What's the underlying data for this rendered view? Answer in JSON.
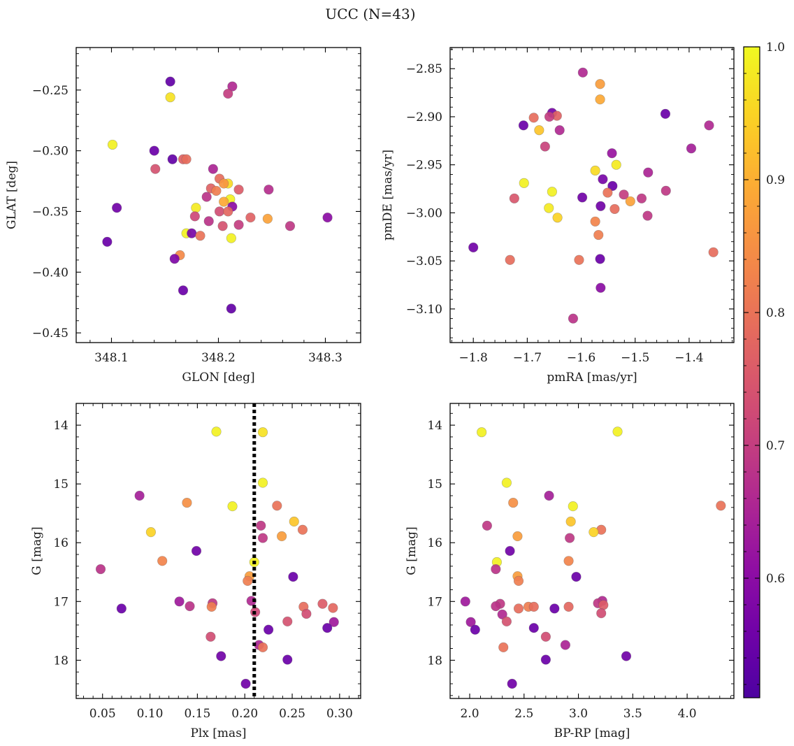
{
  "suptitle": "UCC (N=43)",
  "colorbar": {
    "cmap": "plasma",
    "min": 0.51,
    "max": 1.0,
    "ticks": [
      0.6,
      0.7,
      0.8,
      0.9,
      1.0
    ],
    "tick_labels": [
      "0.6",
      "0.7",
      "0.8",
      "0.9",
      "1.0"
    ]
  },
  "chart_data": [
    {
      "type": "scatter",
      "title": "",
      "xlabel": "GLON [deg]",
      "ylabel": "GLAT [deg]",
      "xlim": [
        348.067,
        348.333
      ],
      "ylim": [
        -0.458,
        -0.215
      ],
      "y_inverted": false,
      "xticks": [
        348.1,
        348.2,
        348.3
      ],
      "xtick_labels": [
        "348.1",
        "348.2",
        "348.3"
      ],
      "yticks": [
        -0.25,
        -0.3,
        -0.35,
        -0.4,
        -0.45
      ],
      "ytick_labels": [
        "−0.25",
        "−0.30",
        "−0.35",
        "−0.40",
        "−0.45"
      ],
      "vline": null,
      "points": [
        {
          "x": 348.155,
          "y": -0.243,
          "c": 0.54
        },
        {
          "x": 348.155,
          "y": -0.256,
          "c": 0.97
        },
        {
          "x": 348.213,
          "y": -0.247,
          "c": 0.66
        },
        {
          "x": 348.209,
          "y": -0.253,
          "c": 0.7
        },
        {
          "x": 348.101,
          "y": -0.295,
          "c": 0.99
        },
        {
          "x": 348.14,
          "y": -0.3,
          "c": 0.55
        },
        {
          "x": 348.157,
          "y": -0.307,
          "c": 0.54
        },
        {
          "x": 348.141,
          "y": -0.315,
          "c": 0.74
        },
        {
          "x": 348.167,
          "y": -0.307,
          "c": 0.77
        },
        {
          "x": 348.17,
          "y": -0.307,
          "c": 0.79
        },
        {
          "x": 348.195,
          "y": -0.315,
          "c": 0.65
        },
        {
          "x": 348.201,
          "y": -0.323,
          "c": 0.79
        },
        {
          "x": 348.209,
          "y": -0.327,
          "c": 0.96
        },
        {
          "x": 348.205,
          "y": -0.327,
          "c": 0.86
        },
        {
          "x": 348.193,
          "y": -0.331,
          "c": 0.77
        },
        {
          "x": 348.198,
          "y": -0.333,
          "c": 0.82
        },
        {
          "x": 348.219,
          "y": -0.332,
          "c": 0.76
        },
        {
          "x": 348.247,
          "y": -0.332,
          "c": 0.67
        },
        {
          "x": 348.189,
          "y": -0.338,
          "c": 0.68
        },
        {
          "x": 348.211,
          "y": -0.34,
          "c": 0.99
        },
        {
          "x": 348.205,
          "y": -0.342,
          "c": 0.89
        },
        {
          "x": 348.213,
          "y": -0.346,
          "c": 0.6
        },
        {
          "x": 348.105,
          "y": -0.347,
          "c": 0.56
        },
        {
          "x": 348.179,
          "y": -0.347,
          "c": 0.98
        },
        {
          "x": 348.201,
          "y": -0.35,
          "c": 0.73
        },
        {
          "x": 348.209,
          "y": -0.35,
          "c": 0.78
        },
        {
          "x": 348.178,
          "y": -0.354,
          "c": 0.72
        },
        {
          "x": 348.23,
          "y": -0.355,
          "c": 0.77
        },
        {
          "x": 348.246,
          "y": -0.356,
          "c": 0.88
        },
        {
          "x": 348.302,
          "y": -0.355,
          "c": 0.6
        },
        {
          "x": 348.191,
          "y": -0.358,
          "c": 0.68
        },
        {
          "x": 348.204,
          "y": -0.362,
          "c": 0.74
        },
        {
          "x": 348.219,
          "y": -0.361,
          "c": 0.7
        },
        {
          "x": 348.267,
          "y": -0.362,
          "c": 0.69
        },
        {
          "x": 348.17,
          "y": -0.368,
          "c": 0.99
        },
        {
          "x": 348.175,
          "y": -0.368,
          "c": 0.57
        },
        {
          "x": 348.183,
          "y": -0.37,
          "c": 0.8
        },
        {
          "x": 348.212,
          "y": -0.372,
          "c": 0.99
        },
        {
          "x": 348.096,
          "y": -0.375,
          "c": 0.55
        },
        {
          "x": 348.164,
          "y": -0.386,
          "c": 0.84
        },
        {
          "x": 348.159,
          "y": -0.389,
          "c": 0.58
        },
        {
          "x": 348.167,
          "y": -0.415,
          "c": 0.55
        },
        {
          "x": 348.212,
          "y": -0.43,
          "c": 0.54
        }
      ]
    },
    {
      "type": "scatter",
      "title": "",
      "xlabel": "pmRA [mas/yr]",
      "ylabel": "pmDE [mas/yr]",
      "xlim": [
        -1.843,
        -1.317
      ],
      "ylim": [
        -3.135,
        -2.828
      ],
      "y_inverted": false,
      "xticks": [
        -1.8,
        -1.7,
        -1.6,
        -1.5,
        -1.4
      ],
      "xtick_labels": [
        "−1.8",
        "−1.7",
        "−1.6",
        "−1.5",
        "−1.4"
      ],
      "yticks": [
        -2.85,
        -2.9,
        -2.95,
        -3.0,
        -3.05,
        -3.1
      ],
      "ytick_labels": [
        "−2.85",
        "−2.90",
        "−2.95",
        "−3.00",
        "−3.05",
        "−3.10"
      ],
      "vline": null,
      "points": [
        {
          "x": -1.597,
          "y": -2.854,
          "c": 0.66
        },
        {
          "x": -1.565,
          "y": -2.866,
          "c": 0.87
        },
        {
          "x": -1.565,
          "y": -2.882,
          "c": 0.89
        },
        {
          "x": -1.654,
          "y": -2.896,
          "c": 0.57
        },
        {
          "x": -1.444,
          "y": -2.897,
          "c": 0.55
        },
        {
          "x": -1.645,
          "y": -2.899,
          "c": 0.77
        },
        {
          "x": -1.659,
          "y": -2.9,
          "c": 0.7
        },
        {
          "x": -1.688,
          "y": -2.901,
          "c": 0.79
        },
        {
          "x": -1.707,
          "y": -2.909,
          "c": 0.55
        },
        {
          "x": -1.363,
          "y": -2.909,
          "c": 0.66
        },
        {
          "x": -1.678,
          "y": -2.914,
          "c": 0.93
        },
        {
          "x": -1.64,
          "y": -2.914,
          "c": 0.66
        },
        {
          "x": -1.667,
          "y": -2.931,
          "c": 0.71
        },
        {
          "x": -1.396,
          "y": -2.933,
          "c": 0.64
        },
        {
          "x": -1.543,
          "y": -2.938,
          "c": 0.62
        },
        {
          "x": -1.535,
          "y": -2.95,
          "c": 0.98
        },
        {
          "x": -1.574,
          "y": -2.956,
          "c": 0.96
        },
        {
          "x": -1.476,
          "y": -2.958,
          "c": 0.65
        },
        {
          "x": -1.56,
          "y": -2.965,
          "c": 0.57
        },
        {
          "x": -1.706,
          "y": -2.969,
          "c": 0.99
        },
        {
          "x": -1.542,
          "y": -2.972,
          "c": 0.55
        },
        {
          "x": -1.443,
          "y": -2.977,
          "c": 0.69
        },
        {
          "x": -1.654,
          "y": -2.978,
          "c": 0.99
        },
        {
          "x": -1.551,
          "y": -2.979,
          "c": 0.8
        },
        {
          "x": -1.521,
          "y": -2.981,
          "c": 0.7
        },
        {
          "x": -1.598,
          "y": -2.984,
          "c": 0.56
        },
        {
          "x": -1.724,
          "y": -2.985,
          "c": 0.75
        },
        {
          "x": -1.488,
          "y": -2.985,
          "c": 0.69
        },
        {
          "x": -1.509,
          "y": -2.988,
          "c": 0.88
        },
        {
          "x": -1.564,
          "y": -2.993,
          "c": 0.56
        },
        {
          "x": -1.66,
          "y": -2.995,
          "c": 0.98
        },
        {
          "x": -1.538,
          "y": -2.996,
          "c": 0.79
        },
        {
          "x": -1.477,
          "y": -3.003,
          "c": 0.69
        },
        {
          "x": -1.644,
          "y": -3.005,
          "c": 0.95
        },
        {
          "x": -1.574,
          "y": -3.009,
          "c": 0.83
        },
        {
          "x": -1.568,
          "y": -3.023,
          "c": 0.82
        },
        {
          "x": -1.8,
          "y": -3.036,
          "c": 0.56
        },
        {
          "x": -1.355,
          "y": -3.041,
          "c": 0.79
        },
        {
          "x": -1.732,
          "y": -3.049,
          "c": 0.79
        },
        {
          "x": -1.604,
          "y": -3.049,
          "c": 0.8
        },
        {
          "x": -1.565,
          "y": -3.048,
          "c": 0.55
        },
        {
          "x": -1.564,
          "y": -3.078,
          "c": 0.6
        },
        {
          "x": -1.615,
          "y": -3.11,
          "c": 0.68
        }
      ]
    },
    {
      "type": "scatter",
      "title": "",
      "xlabel": "Plx [mas]",
      "ylabel": "G [mag]",
      "xlim": [
        0.0222,
        0.3222
      ],
      "ylim": [
        18.65,
        13.63
      ],
      "y_inverted": true,
      "xticks": [
        0.05,
        0.1,
        0.15,
        0.2,
        0.25,
        0.3
      ],
      "xtick_labels": [
        "0.05",
        "0.10",
        "0.15",
        "0.20",
        "0.25",
        "0.30"
      ],
      "yticks": [
        14,
        15,
        16,
        17,
        18
      ],
      "ytick_labels": [
        "14",
        "15",
        "16",
        "17",
        "18"
      ],
      "vline": {
        "x": 0.21,
        "style": "dotted"
      },
      "points": [
        {
          "x": 0.17,
          "y": 14.11,
          "c": 0.99
        },
        {
          "x": 0.219,
          "y": 14.12,
          "c": 0.97
        },
        {
          "x": 0.219,
          "y": 14.98,
          "c": 0.99
        },
        {
          "x": 0.089,
          "y": 15.2,
          "c": 0.64
        },
        {
          "x": 0.139,
          "y": 15.32,
          "c": 0.85
        },
        {
          "x": 0.234,
          "y": 15.37,
          "c": 0.8
        },
        {
          "x": 0.187,
          "y": 15.38,
          "c": 0.99
        },
        {
          "x": 0.252,
          "y": 15.64,
          "c": 0.93
        },
        {
          "x": 0.217,
          "y": 15.71,
          "c": 0.69
        },
        {
          "x": 0.261,
          "y": 15.78,
          "c": 0.8
        },
        {
          "x": 0.101,
          "y": 15.82,
          "c": 0.95
        },
        {
          "x": 0.239,
          "y": 15.89,
          "c": 0.87
        },
        {
          "x": 0.219,
          "y": 15.92,
          "c": 0.69
        },
        {
          "x": 0.149,
          "y": 16.14,
          "c": 0.56
        },
        {
          "x": 0.113,
          "y": 16.31,
          "c": 0.83
        },
        {
          "x": 0.21,
          "y": 16.33,
          "c": 0.99
        },
        {
          "x": 0.048,
          "y": 16.45,
          "c": 0.68
        },
        {
          "x": 0.205,
          "y": 16.57,
          "c": 0.87
        },
        {
          "x": 0.251,
          "y": 16.58,
          "c": 0.55
        },
        {
          "x": 0.203,
          "y": 16.65,
          "c": 0.82
        },
        {
          "x": 0.131,
          "y": 17.0,
          "c": 0.63
        },
        {
          "x": 0.207,
          "y": 16.99,
          "c": 0.66
        },
        {
          "x": 0.166,
          "y": 17.03,
          "c": 0.69
        },
        {
          "x": 0.282,
          "y": 17.04,
          "c": 0.76
        },
        {
          "x": 0.142,
          "y": 17.08,
          "c": 0.68
        },
        {
          "x": 0.165,
          "y": 17.09,
          "c": 0.82
        },
        {
          "x": 0.262,
          "y": 17.09,
          "c": 0.79
        },
        {
          "x": 0.293,
          "y": 17.11,
          "c": 0.78
        },
        {
          "x": 0.07,
          "y": 17.12,
          "c": 0.55
        },
        {
          "x": 0.211,
          "y": 17.18,
          "c": 0.72
        },
        {
          "x": 0.265,
          "y": 17.21,
          "c": 0.73
        },
        {
          "x": 0.245,
          "y": 17.34,
          "c": 0.74
        },
        {
          "x": 0.294,
          "y": 17.35,
          "c": 0.63
        },
        {
          "x": 0.287,
          "y": 17.45,
          "c": 0.55
        },
        {
          "x": 0.225,
          "y": 17.48,
          "c": 0.55
        },
        {
          "x": 0.164,
          "y": 17.6,
          "c": 0.73
        },
        {
          "x": 0.215,
          "y": 17.74,
          "c": 0.65
        },
        {
          "x": 0.219,
          "y": 17.78,
          "c": 0.8
        },
        {
          "x": 0.175,
          "y": 17.93,
          "c": 0.56
        },
        {
          "x": 0.245,
          "y": 17.99,
          "c": 0.55
        },
        {
          "x": 0.201,
          "y": 18.4,
          "c": 0.56
        }
      ]
    },
    {
      "type": "scatter",
      "title": "",
      "xlabel": "BP-RP [mag]",
      "ylabel": "G [mag]",
      "xlim": [
        1.82,
        4.43
      ],
      "ylim": [
        18.65,
        13.63
      ],
      "y_inverted": true,
      "xticks": [
        2.0,
        2.5,
        3.0,
        3.5,
        4.0
      ],
      "xtick_labels": [
        "2.0",
        "2.5",
        "3.0",
        "3.5",
        "4.0"
      ],
      "yticks": [
        14,
        15,
        16,
        17,
        18
      ],
      "ytick_labels": [
        "14",
        "15",
        "16",
        "17",
        "18"
      ],
      "vline": null,
      "points": [
        {
          "x": 2.11,
          "y": 14.12,
          "c": 0.99
        },
        {
          "x": 3.36,
          "y": 14.11,
          "c": 0.99
        },
        {
          "x": 2.34,
          "y": 14.98,
          "c": 0.99
        },
        {
          "x": 2.73,
          "y": 15.2,
          "c": 0.64
        },
        {
          "x": 2.4,
          "y": 15.32,
          "c": 0.85
        },
        {
          "x": 2.95,
          "y": 15.38,
          "c": 0.99
        },
        {
          "x": 4.31,
          "y": 15.37,
          "c": 0.8
        },
        {
          "x": 2.93,
          "y": 15.64,
          "c": 0.93
        },
        {
          "x": 2.16,
          "y": 15.71,
          "c": 0.69
        },
        {
          "x": 3.21,
          "y": 15.78,
          "c": 0.8
        },
        {
          "x": 3.14,
          "y": 15.82,
          "c": 0.95
        },
        {
          "x": 2.44,
          "y": 15.89,
          "c": 0.87
        },
        {
          "x": 2.92,
          "y": 15.92,
          "c": 0.69
        },
        {
          "x": 2.37,
          "y": 16.14,
          "c": 0.56
        },
        {
          "x": 2.91,
          "y": 16.31,
          "c": 0.83
        },
        {
          "x": 2.25,
          "y": 16.33,
          "c": 0.99
        },
        {
          "x": 2.24,
          "y": 16.45,
          "c": 0.68
        },
        {
          "x": 2.44,
          "y": 16.57,
          "c": 0.87
        },
        {
          "x": 2.98,
          "y": 16.58,
          "c": 0.55
        },
        {
          "x": 2.45,
          "y": 16.65,
          "c": 0.82
        },
        {
          "x": 1.96,
          "y": 17.0,
          "c": 0.63
        },
        {
          "x": 3.22,
          "y": 16.99,
          "c": 0.66
        },
        {
          "x": 3.18,
          "y": 17.03,
          "c": 0.69
        },
        {
          "x": 2.28,
          "y": 17.04,
          "c": 0.69
        },
        {
          "x": 3.23,
          "y": 17.06,
          "c": 0.76
        },
        {
          "x": 2.24,
          "y": 17.08,
          "c": 0.68
        },
        {
          "x": 2.54,
          "y": 17.09,
          "c": 0.82
        },
        {
          "x": 2.59,
          "y": 17.09,
          "c": 0.79
        },
        {
          "x": 2.91,
          "y": 17.09,
          "c": 0.78
        },
        {
          "x": 2.45,
          "y": 17.12,
          "c": 0.79
        },
        {
          "x": 2.78,
          "y": 17.12,
          "c": 0.55
        },
        {
          "x": 2.3,
          "y": 17.22,
          "c": 0.66
        },
        {
          "x": 3.21,
          "y": 17.2,
          "c": 0.73
        },
        {
          "x": 2.34,
          "y": 17.34,
          "c": 0.74
        },
        {
          "x": 2.01,
          "y": 17.35,
          "c": 0.63
        },
        {
          "x": 2.59,
          "y": 17.45,
          "c": 0.55
        },
        {
          "x": 2.05,
          "y": 17.48,
          "c": 0.55
        },
        {
          "x": 2.7,
          "y": 17.6,
          "c": 0.73
        },
        {
          "x": 2.88,
          "y": 17.74,
          "c": 0.65
        },
        {
          "x": 2.31,
          "y": 17.78,
          "c": 0.8
        },
        {
          "x": 3.44,
          "y": 17.93,
          "c": 0.56
        },
        {
          "x": 2.7,
          "y": 17.99,
          "c": 0.55
        },
        {
          "x": 2.39,
          "y": 18.4,
          "c": 0.56
        }
      ]
    }
  ]
}
